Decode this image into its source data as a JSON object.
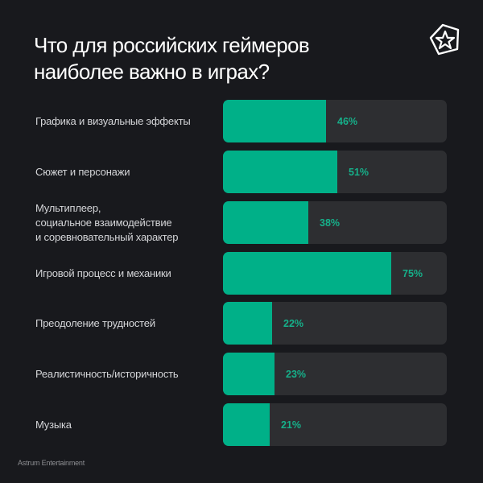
{
  "title": "Что для российских геймеров наиболее важно в играх?",
  "logo": {
    "icon": "astrum-star-pentagon-logo-icon"
  },
  "footer": "Astrum Entertainment",
  "colors": {
    "background": "#18191d",
    "bar_fill": "#00b088",
    "bar_track": "#2d2e31",
    "value_text": "#16b08a"
  },
  "rows": [
    {
      "label": "Графика и визуальные эффекты",
      "value": 46,
      "value_label": "46%"
    },
    {
      "label": "Сюжет и персонажи",
      "value": 51,
      "value_label": "51%"
    },
    {
      "label": "Мультиплеер,\nсоциальное взаимодействие\nи соревновательный характер",
      "value": 38,
      "value_label": "38%"
    },
    {
      "label": "Игровой процесс и механики",
      "value": 75,
      "value_label": "75%"
    },
    {
      "label": "Преодоление трудностей",
      "value": 22,
      "value_label": "22%"
    },
    {
      "label": "Реалистичность/историчность",
      "value": 23,
      "value_label": "23%"
    },
    {
      "label": "Музыка",
      "value": 21,
      "value_label": "21%"
    }
  ],
  "chart_data": {
    "type": "bar",
    "orientation": "horizontal",
    "title": "Что для российских геймеров наиболее важно в играх?",
    "categories": [
      "Графика и визуальные эффекты",
      "Сюжет и персонажи",
      "Мультиплеер, социальное взаимодействие и соревновательный характер",
      "Игровой процесс и механики",
      "Преодоление трудностей",
      "Реалистичность/историчность",
      "Музыка"
    ],
    "values": [
      46,
      51,
      38,
      75,
      22,
      23,
      21
    ],
    "unit": "%",
    "xlabel": "",
    "ylabel": "",
    "xlim": [
      0,
      100
    ],
    "grid": false,
    "legend": null,
    "source": "Astrum Entertainment"
  }
}
